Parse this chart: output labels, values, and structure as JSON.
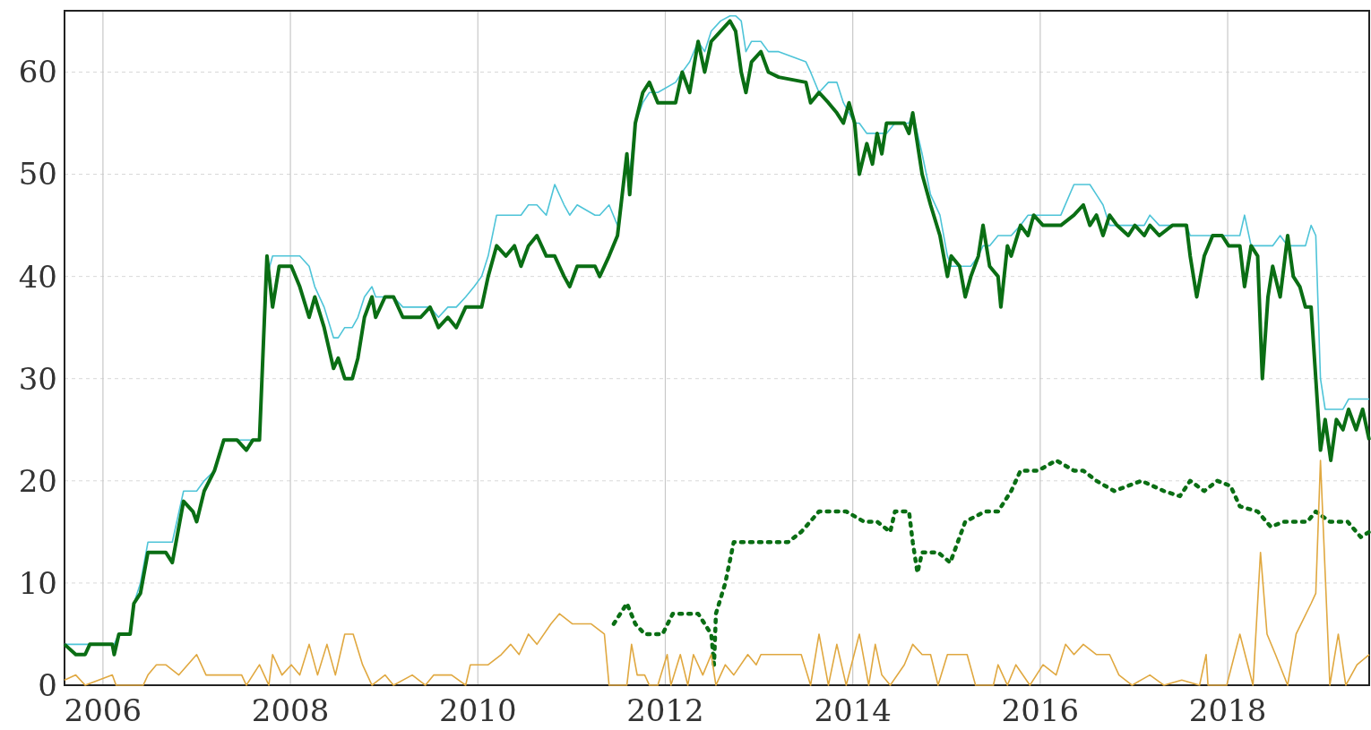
{
  "chart_data": {
    "type": "line",
    "x": [
      2005.59,
      2005.71,
      2005.81,
      2005.86,
      2006.1,
      2006.12,
      2006.17,
      2006.29,
      2006.33,
      2006.4,
      2006.48,
      2006.67,
      2006.74,
      2006.86,
      2006.96,
      2007.0,
      2007.08,
      2007.19,
      2007.29,
      2007.43,
      2007.53,
      2007.6,
      2007.67,
      2007.75,
      2007.81,
      2007.88,
      2008.01,
      2008.1,
      2008.2,
      2008.26,
      2008.36,
      2008.46,
      2008.51,
      2008.58,
      2008.66,
      2008.72,
      2008.79,
      2008.87,
      2008.91,
      2009.01,
      2009.1,
      2009.2,
      2009.39,
      2009.49,
      2009.58,
      2009.68,
      2009.77,
      2009.87,
      2009.96,
      2010.04,
      2010.11,
      2010.2,
      2010.3,
      2010.39,
      2010.46,
      2010.54,
      2010.63,
      2010.73,
      2010.82,
      2010.92,
      2010.98,
      2011.06,
      2011.25,
      2011.3,
      2011.4,
      2011.49,
      2011.54,
      2011.59,
      2011.62,
      2011.68,
      2011.76,
      2011.83,
      2011.92,
      2012.11,
      2012.18,
      2012.26,
      2012.35,
      2012.42,
      2012.49,
      2012.59,
      2012.69,
      2012.75,
      2012.81,
      2012.86,
      2012.92,
      2013.02,
      2013.1,
      2013.21,
      2013.5,
      2013.55,
      2013.64,
      2013.74,
      2013.83,
      2013.9,
      2013.96,
      2014.02,
      2014.07,
      2014.15,
      2014.21,
      2014.26,
      2014.31,
      2014.36,
      2014.45,
      2014.55,
      2014.6,
      2014.64,
      2014.74,
      2014.83,
      2014.93,
      2015.01,
      2015.05,
      2015.14,
      2015.2,
      2015.26,
      2015.34,
      2015.39,
      2015.46,
      2015.55,
      2015.58,
      2015.65,
      2015.69,
      2015.79,
      2015.87,
      2015.93,
      2016.03,
      2016.12,
      2016.22,
      2016.36,
      2016.46,
      2016.53,
      2016.6,
      2016.67,
      2016.74,
      2016.82,
      2016.94,
      2017.01,
      2017.11,
      2017.17,
      2017.27,
      2017.41,
      2017.56,
      2017.6,
      2017.67,
      2017.75,
      2017.84,
      2017.94,
      2018.01,
      2018.13,
      2018.18,
      2018.25,
      2018.32,
      2018.37,
      2018.43,
      2018.48,
      2018.56,
      2018.64,
      2018.7,
      2018.77,
      2018.83,
      2018.89,
      2018.94,
      2018.99,
      2019.04,
      2019.1,
      2019.16,
      2019.23,
      2019.29,
      2019.37,
      2019.44,
      2019.51
    ],
    "xlim": [
      2005.59,
      2019.51
    ],
    "xticks": [
      2006,
      2008,
      2010,
      2012,
      2014,
      2016,
      2018
    ],
    "ylim": [
      0,
      66
    ],
    "yticks": [
      0,
      10,
      20,
      30,
      40,
      50,
      60
    ],
    "grid": true,
    "series": [
      {
        "color": "#4ec4d8",
        "values": [
          4,
          4,
          4,
          4,
          4,
          4,
          5,
          5,
          8,
          10,
          14,
          14,
          14,
          19,
          19,
          19,
          20,
          21,
          24,
          24,
          24,
          24,
          24,
          40,
          42,
          42,
          42,
          42,
          41,
          39,
          37,
          34,
          34,
          35,
          35,
          36,
          38,
          39,
          38,
          38,
          38,
          37,
          37,
          37,
          36,
          37,
          37,
          38,
          39,
          40,
          42,
          46,
          46,
          46,
          46,
          47,
          47,
          46,
          49,
          47,
          46,
          47,
          46,
          46,
          47,
          45,
          48,
          52,
          50,
          55,
          57,
          58,
          58,
          59,
          60,
          61,
          63,
          62,
          64,
          65,
          65.5,
          65.5,
          65,
          62,
          63,
          63,
          62,
          62,
          61,
          60,
          58,
          59,
          59,
          57,
          56,
          55,
          55,
          54,
          54,
          54,
          54,
          54,
          55,
          55,
          55,
          56,
          52,
          48,
          46,
          42,
          41,
          41,
          41,
          41,
          42,
          43,
          43,
          44,
          44,
          44,
          44,
          45,
          46,
          46,
          46,
          46,
          46,
          49,
          49,
          49,
          48,
          47,
          45,
          45,
          45,
          45,
          45,
          46,
          45,
          45,
          45,
          44,
          44,
          44,
          44,
          44,
          44,
          44,
          46,
          43,
          43,
          43,
          43,
          43,
          44,
          43,
          43,
          43,
          43,
          45,
          44,
          30,
          27,
          27,
          27,
          27,
          28,
          28,
          28,
          28
        ]
      },
      {
        "color": "#0a6e14",
        "values": [
          4,
          3,
          3,
          4,
          4,
          3,
          5,
          5,
          8,
          9,
          13,
          13,
          12,
          18,
          17,
          16,
          19,
          21,
          24,
          24,
          23,
          24,
          24,
          42,
          37,
          41,
          41,
          39,
          36,
          38,
          35,
          31,
          32,
          30,
          30,
          32,
          36,
          38,
          36,
          38,
          38,
          36,
          36,
          37,
          35,
          36,
          35,
          37,
          37,
          37,
          40,
          43,
          42,
          43,
          41,
          43,
          44,
          42,
          42,
          40,
          39,
          41,
          41,
          40,
          42,
          44,
          48,
          52,
          48,
          55,
          58,
          59,
          57,
          57,
          60,
          58,
          63,
          60,
          63,
          64,
          65,
          64,
          60,
          58,
          61,
          62,
          60,
          59.5,
          59,
          57,
          58,
          57,
          56,
          55,
          57,
          55,
          50,
          53,
          51,
          54,
          52,
          55,
          55,
          55,
          54,
          56,
          50,
          47,
          44,
          40,
          42,
          41,
          38,
          40,
          42,
          45,
          41,
          40,
          37,
          43,
          42,
          45,
          44,
          46,
          45,
          45,
          45,
          46,
          47,
          45,
          46,
          44,
          46,
          45,
          44,
          45,
          44,
          45,
          44,
          45,
          45,
          42,
          38,
          42,
          44,
          44,
          43,
          43,
          39,
          43,
          42,
          30,
          38,
          41,
          38,
          44,
          40,
          39,
          37,
          37,
          30,
          23,
          26,
          22,
          26,
          25,
          27,
          25,
          27,
          24
        ]
      },
      {
        "color": "#0a6e14",
        "line_style": "dotted",
        "x": [
          2011.45,
          2011.59,
          2011.68,
          2011.78,
          2011.97,
          2012.08,
          2012.35,
          2012.49,
          2012.52,
          2012.54,
          2012.64,
          2012.73,
          2012.92,
          2013.31,
          2013.45,
          2013.64,
          2013.93,
          2014.12,
          2014.26,
          2014.4,
          2014.45,
          2014.6,
          2014.64,
          2014.69,
          2014.74,
          2014.91,
          2015.04,
          2015.2,
          2015.41,
          2015.55,
          2015.69,
          2015.79,
          2015.98,
          2016.17,
          2016.36,
          2016.46,
          2016.6,
          2016.79,
          2017.08,
          2017.32,
          2017.49,
          2017.6,
          2017.75,
          2017.89,
          2018.03,
          2018.13,
          2018.32,
          2018.46,
          2018.6,
          2018.85,
          2018.94,
          2019.09,
          2019.28,
          2019.42,
          2019.51
        ],
        "values": [
          6,
          8,
          6,
          5,
          5,
          7,
          7,
          5,
          2,
          7,
          10,
          14,
          14,
          14,
          15,
          17,
          17,
          16,
          16,
          15,
          17,
          17,
          14,
          11,
          13,
          13,
          12,
          16,
          17,
          17,
          19,
          21,
          21,
          22,
          21,
          21,
          20,
          19,
          20,
          19,
          18.5,
          20,
          19,
          20,
          19.5,
          17.5,
          17,
          15.5,
          16,
          16,
          17,
          16,
          16,
          14.5,
          15
        ]
      },
      {
        "color": "#e0a840",
        "x": [
          2005.59,
          2005.71,
          2005.81,
          2006.1,
          2006.14,
          2006.43,
          2006.48,
          2006.57,
          2006.67,
          2006.81,
          2007.0,
          2007.1,
          2007.48,
          2007.53,
          2007.67,
          2007.77,
          2007.81,
          2007.91,
          2008.01,
          2008.1,
          2008.2,
          2008.29,
          2008.39,
          2008.48,
          2008.58,
          2008.67,
          2008.77,
          2008.87,
          2009.01,
          2009.1,
          2009.3,
          2009.44,
          2009.53,
          2009.72,
          2009.87,
          2009.92,
          2010.11,
          2010.25,
          2010.35,
          2010.44,
          2010.54,
          2010.63,
          2010.78,
          2010.87,
          2011.01,
          2011.21,
          2011.35,
          2011.4,
          2011.59,
          2011.64,
          2011.7,
          2011.78,
          2011.83,
          2011.92,
          2012.02,
          2012.06,
          2012.16,
          2012.24,
          2012.3,
          2012.4,
          2012.49,
          2012.54,
          2012.64,
          2012.73,
          2012.88,
          2012.97,
          2013.02,
          2013.45,
          2013.55,
          2013.64,
          2013.74,
          2013.83,
          2013.93,
          2014.07,
          2014.17,
          2014.24,
          2014.31,
          2014.4,
          2014.55,
          2014.64,
          2014.74,
          2014.83,
          2014.91,
          2015.01,
          2015.07,
          2015.22,
          2015.31,
          2015.5,
          2015.55,
          2015.65,
          2015.74,
          2015.89,
          2016.03,
          2016.17,
          2016.27,
          2016.36,
          2016.46,
          2016.6,
          2016.74,
          2016.84,
          2016.98,
          2017.17,
          2017.32,
          2017.51,
          2017.7,
          2017.77,
          2017.79,
          2017.99,
          2018.13,
          2018.27,
          2018.35,
          2018.42,
          2018.51,
          2018.64,
          2018.73,
          2018.89,
          2018.94,
          2018.99,
          2019.04,
          2019.09,
          2019.18,
          2019.26,
          2019.38,
          2019.51
        ],
        "values": [
          0.5,
          1,
          0,
          1,
          0,
          0,
          1,
          2,
          2,
          1,
          3,
          1,
          1,
          0,
          2,
          0,
          3,
          1,
          2,
          1,
          4,
          1,
          4,
          1,
          5,
          5,
          2,
          0,
          1,
          0,
          1,
          0,
          1,
          1,
          0,
          2,
          2,
          3,
          4,
          3,
          5,
          4,
          6,
          7,
          6,
          6,
          5,
          0,
          0,
          4,
          1,
          1,
          0,
          0,
          3,
          0,
          3,
          0,
          3,
          1,
          3,
          0,
          2,
          1,
          3,
          2,
          3,
          3,
          0,
          5,
          0,
          4,
          0,
          5,
          0,
          4,
          1,
          0,
          2,
          4,
          3,
          3,
          0,
          3,
          3,
          3,
          0,
          0,
          2,
          0,
          2,
          0,
          2,
          1,
          4,
          3,
          4,
          3,
          3,
          1,
          0,
          1,
          0,
          0.5,
          0,
          3,
          0,
          0,
          5,
          0,
          13,
          5,
          3,
          0,
          5,
          8,
          9,
          22,
          11,
          0,
          5,
          0,
          2,
          3
        ]
      }
    ]
  }
}
